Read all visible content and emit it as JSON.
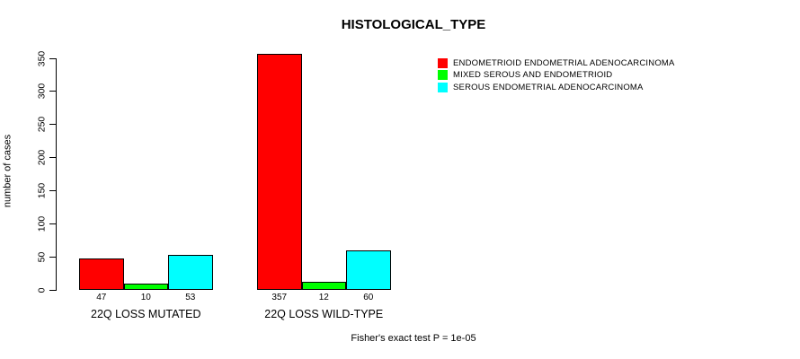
{
  "chart_data": {
    "type": "bar",
    "title": "HISTOLOGICAL_TYPE",
    "ylabel": "number of cases",
    "xlabel": "",
    "ylim": [
      0,
      350
    ],
    "yticks": [
      0,
      50,
      100,
      150,
      200,
      250,
      300,
      350
    ],
    "categories": [
      "22Q LOSS MUTATED",
      "22Q LOSS WILD-TYPE"
    ],
    "series": [
      {
        "name": "ENDOMETRIOID ENDOMETRIAL ADENOCARCINOMA",
        "color": "#ff0000",
        "values": [
          47,
          357
        ]
      },
      {
        "name": "MIXED SEROUS AND ENDOMETRIOID",
        "color": "#00ff00",
        "values": [
          10,
          12
        ]
      },
      {
        "name": "SEROUS ENDOMETRIAL ADENOCARCINOMA",
        "color": "#00ffff",
        "values": [
          53,
          60
        ]
      }
    ],
    "bar_value_labels_shown": true,
    "footnote": "Fisher's exact test P = 1e-05",
    "legend_position": "top-right",
    "grid": false,
    "bar_border_color": "#000000",
    "background": "#ffffff",
    "axis_color": "#000000"
  }
}
